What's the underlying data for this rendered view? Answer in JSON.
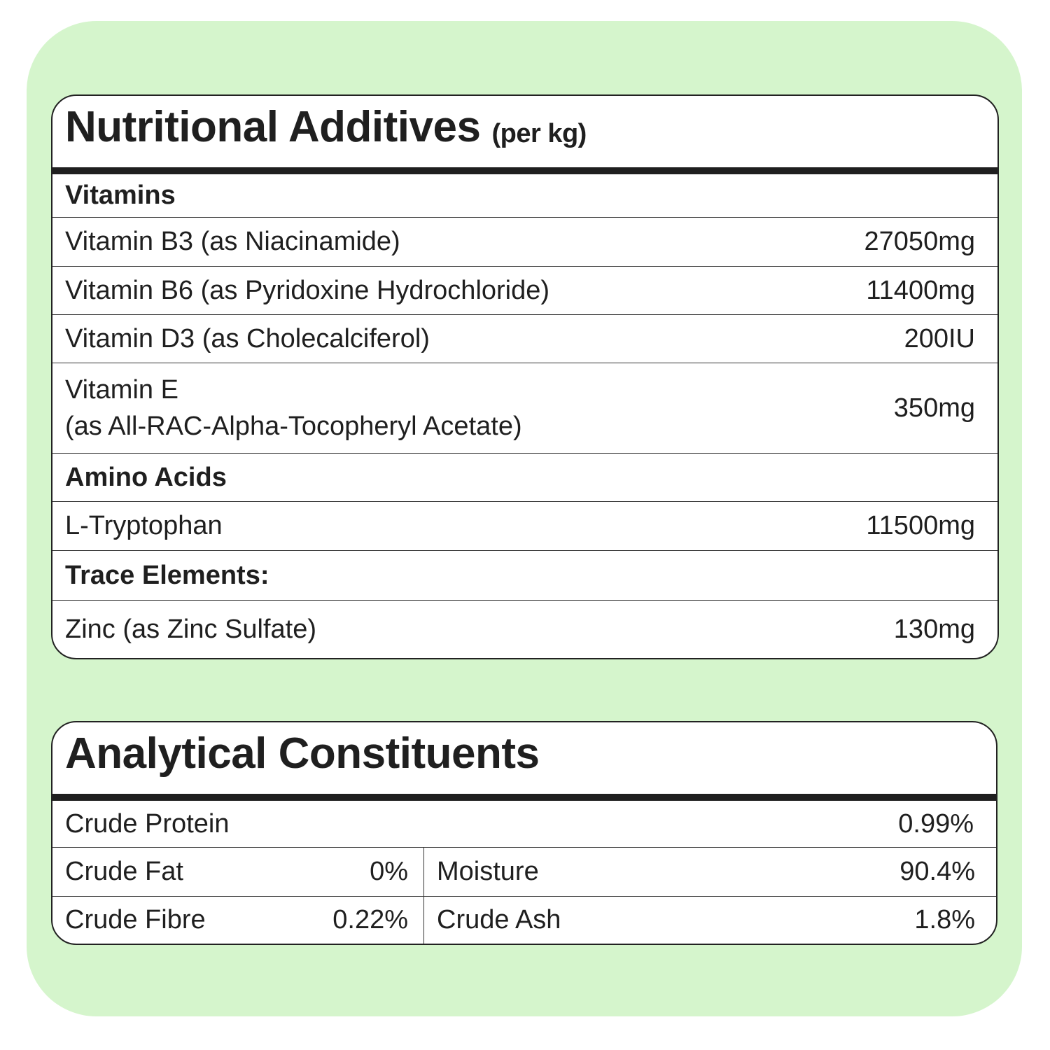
{
  "nutritional_additives": {
    "title": "Nutritional Additives",
    "subtitle": "(per kg)",
    "sections": [
      {
        "heading": "Vitamins",
        "rows": [
          {
            "name": "Vitamin B3 (as Niacinamide)",
            "amount": "27050mg"
          },
          {
            "name": "Vitamin B6 (as Pyridoxine Hydrochloride)",
            "amount": "11400mg"
          },
          {
            "name": "Vitamin D3 (as Cholecalciferol)",
            "amount": "200IU"
          },
          {
            "name": "Vitamin E",
            "note": "(as All-RAC-Alpha-Tocopheryl Acetate)",
            "amount": "350mg"
          }
        ]
      },
      {
        "heading": "Amino Acids",
        "rows": [
          {
            "name": "L-Tryptophan",
            "amount": "11500mg"
          }
        ]
      },
      {
        "heading": "Trace Elements:",
        "rows": [
          {
            "name": "Zinc (as Zinc Sulfate)",
            "amount": "130mg"
          }
        ]
      }
    ]
  },
  "analytical_constituents": {
    "title": "Analytical Constituents",
    "full_row": {
      "name": "Crude Protein",
      "amount": "0.99%"
    },
    "pairs": [
      [
        {
          "name": "Crude Fat",
          "amount": "0%"
        },
        {
          "name": "Moisture",
          "amount": "90.4%"
        }
      ],
      [
        {
          "name": "Crude Fibre",
          "amount": "0.22%"
        },
        {
          "name": "Crude Ash",
          "amount": "1.8%"
        }
      ]
    ]
  }
}
